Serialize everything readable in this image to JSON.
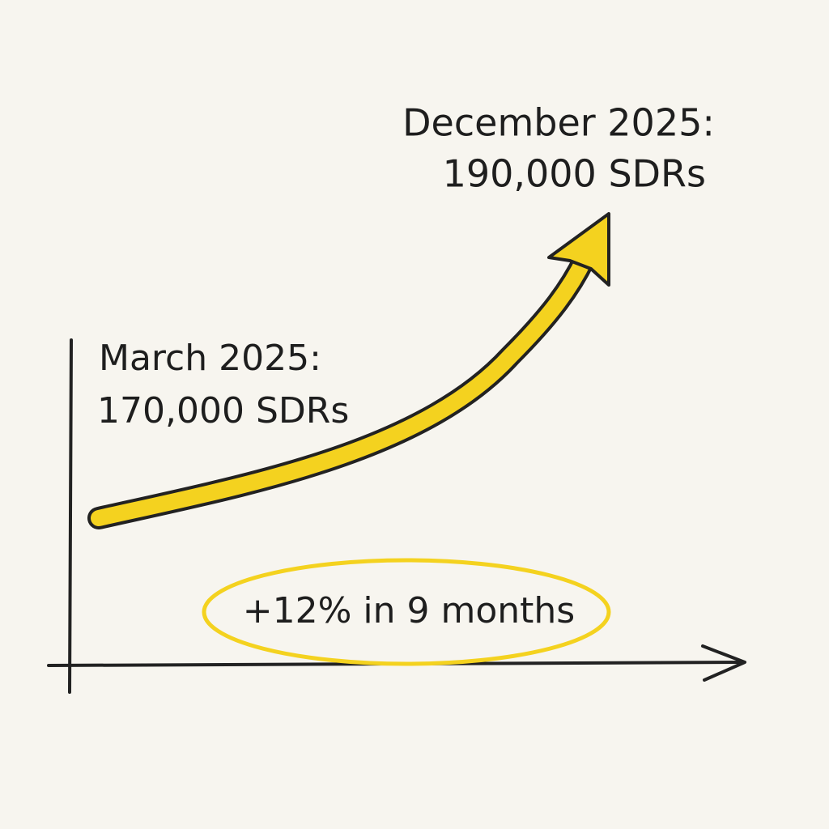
{
  "annotations": {
    "end_date": "December 2025:",
    "end_value": "190,000 SDRs",
    "start_date": "March 2025:",
    "start_value": "170,000 SDRs",
    "change": "+12% in 9 months"
  }
}
